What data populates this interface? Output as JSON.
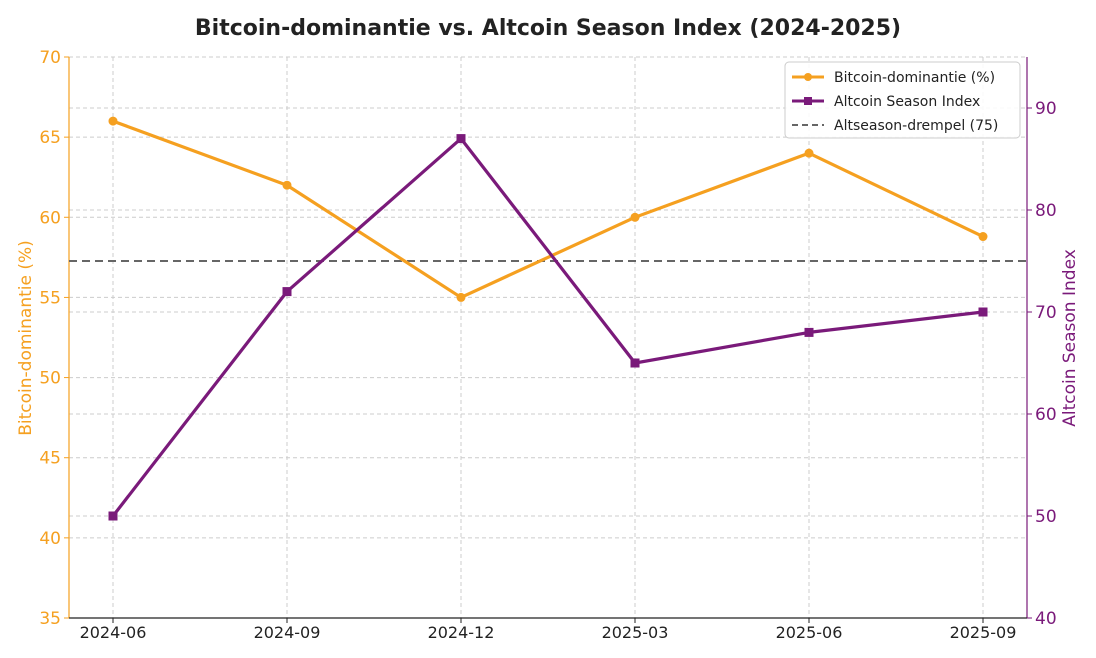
{
  "chart_data": {
    "type": "line",
    "title": "Bitcoin-dominantie vs. Altcoin Season Index (2024-2025)",
    "categories": [
      "2024-06",
      "2024-09",
      "2024-12",
      "2025-03",
      "2025-06",
      "2025-09"
    ],
    "y_left": {
      "label": "Bitcoin-dominantie (%)",
      "range": [
        35,
        70
      ],
      "ticks": [
        35,
        40,
        45,
        50,
        55,
        60,
        65,
        70
      ]
    },
    "y_right": {
      "label": "Altcoin Season Index",
      "range": [
        40,
        95
      ],
      "ticks": [
        40,
        50,
        60,
        70,
        80,
        90
      ]
    },
    "series": [
      {
        "name": "Bitcoin-dominantie (%)",
        "axis": "left",
        "color": "#f5a020",
        "marker": "circle",
        "values": [
          66,
          62,
          55,
          60,
          64,
          58.8
        ]
      },
      {
        "name": "Altcoin Season Index",
        "axis": "right",
        "color": "#7a1a7a",
        "marker": "square",
        "values": [
          50,
          72,
          87,
          65,
          68,
          70
        ]
      }
    ],
    "threshold": {
      "name": "Altseason-drempel (75)",
      "axis": "right",
      "value": 75,
      "color": "#666666"
    },
    "grid": true,
    "legend_position": "top-right"
  }
}
